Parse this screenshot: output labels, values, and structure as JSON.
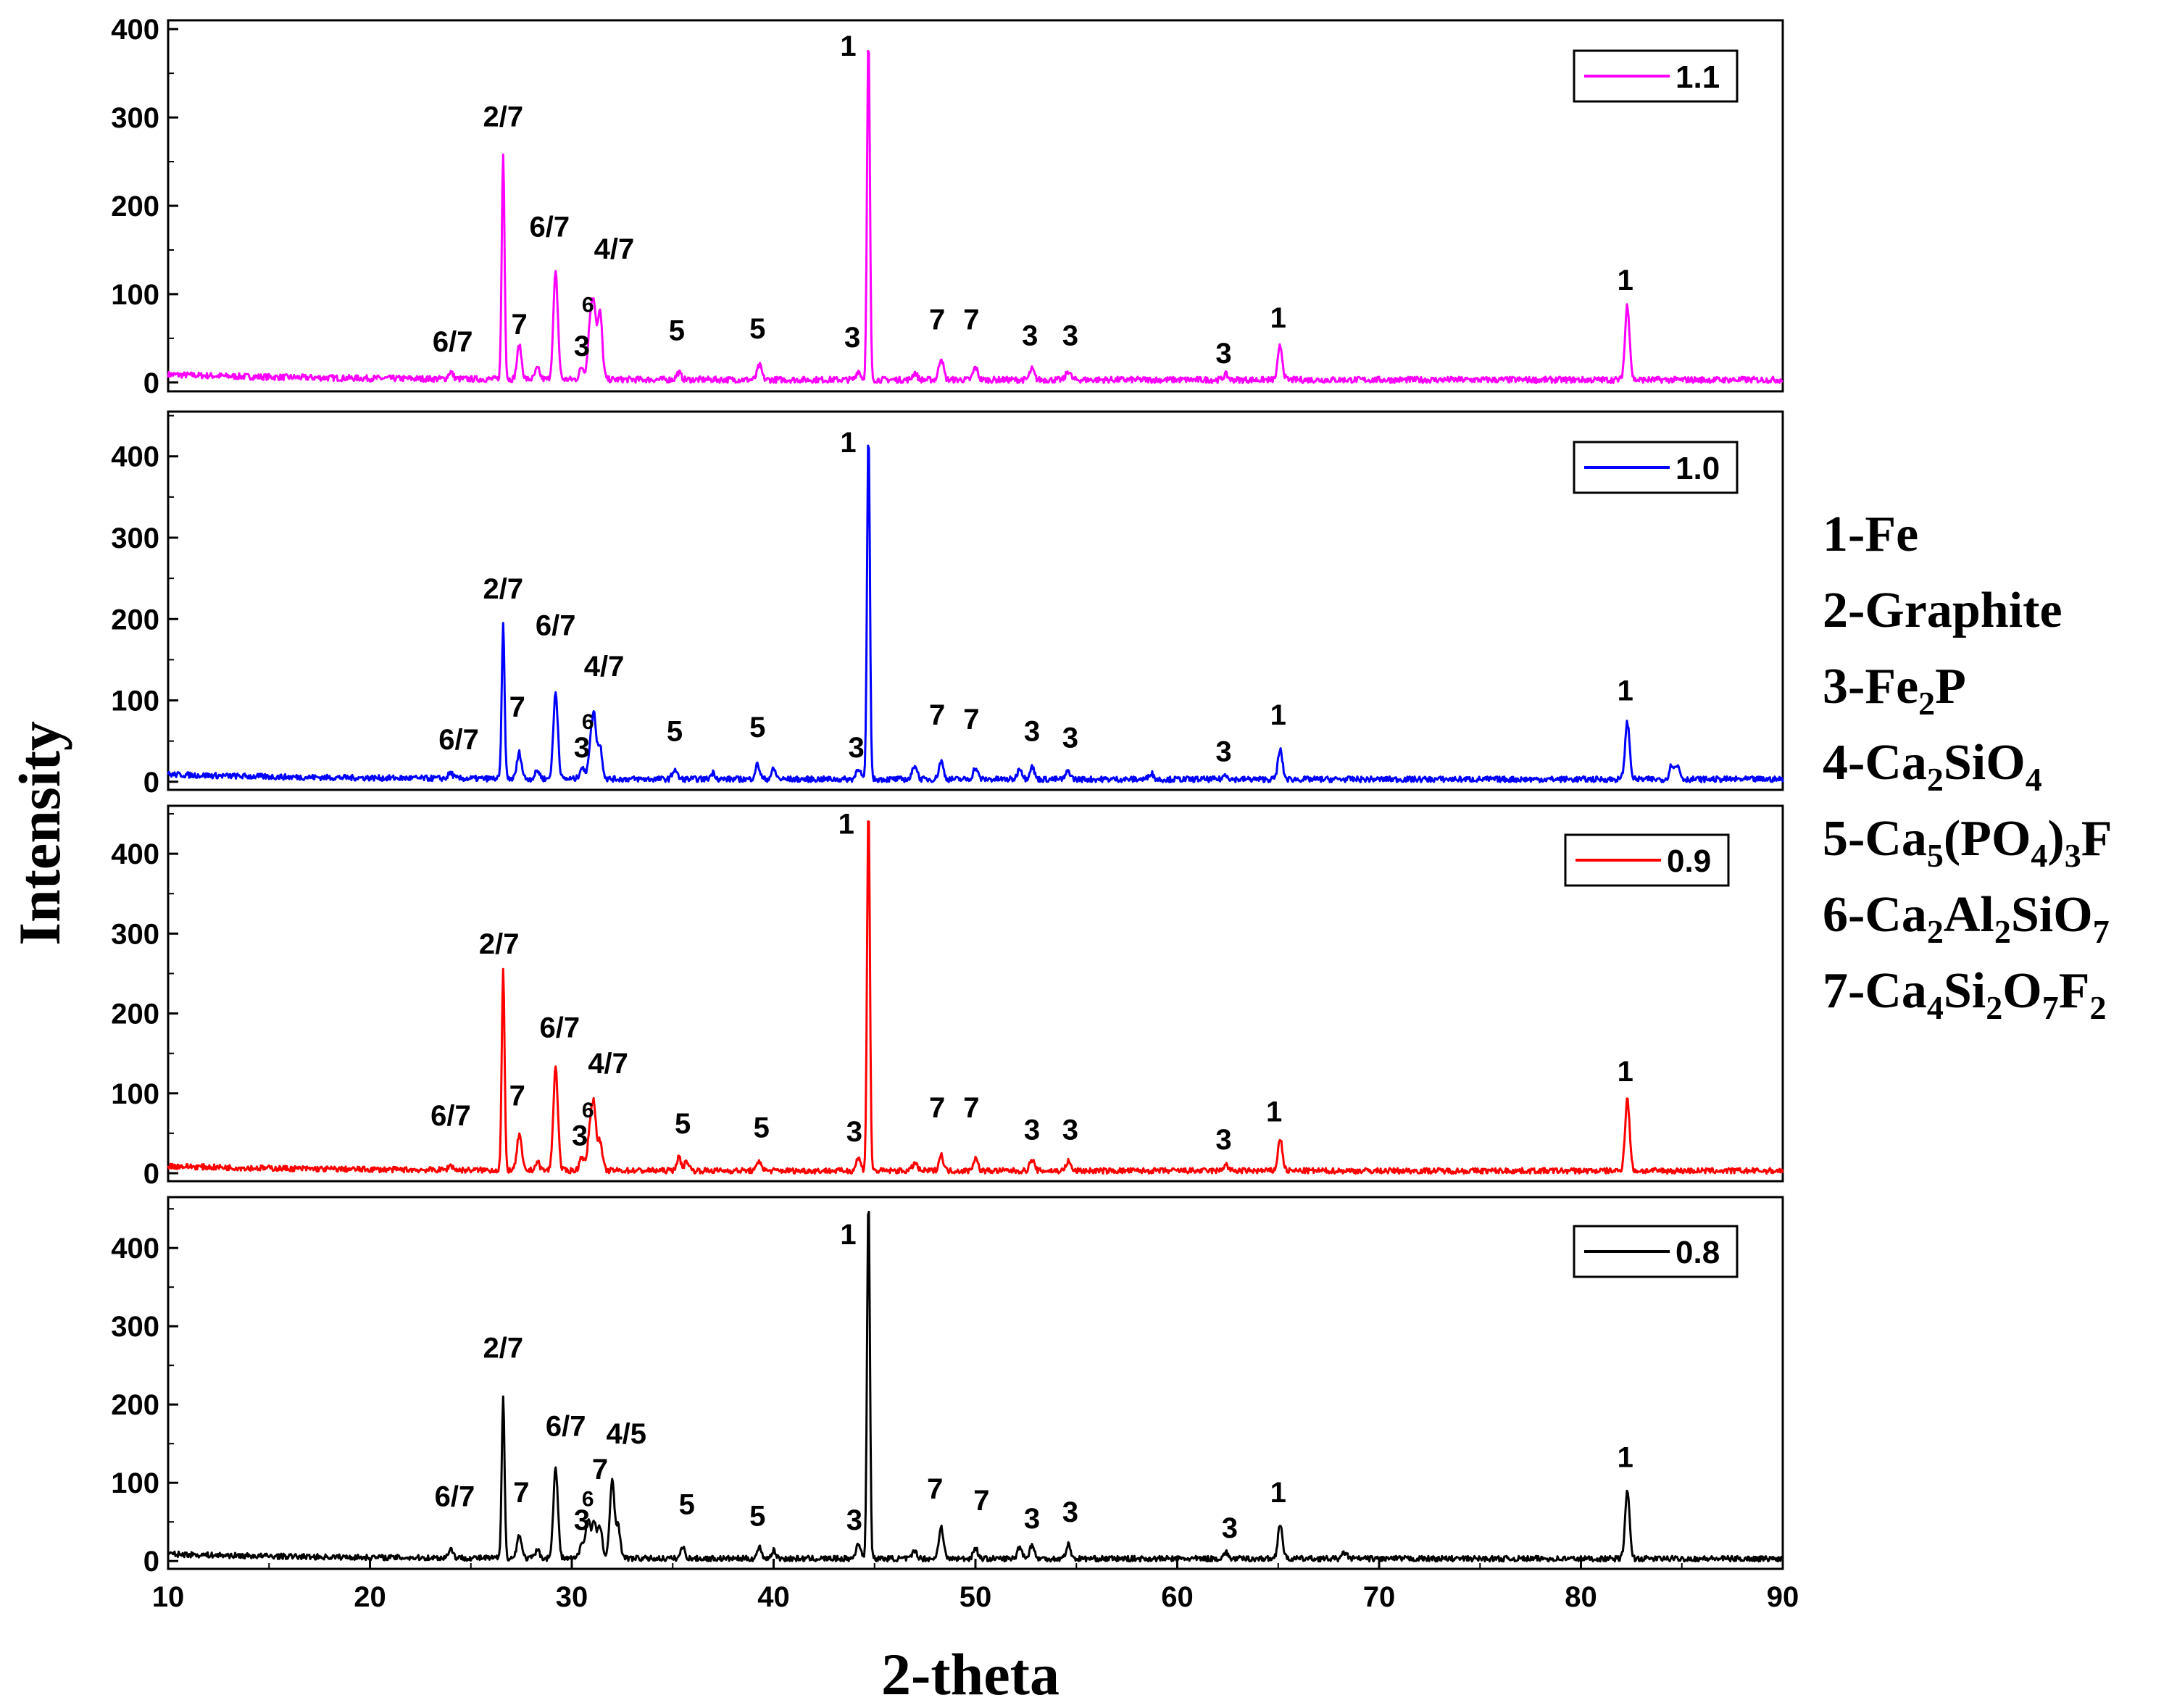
{
  "chart_data": {
    "type": "line",
    "xlabel": "2-theta",
    "ylabel": "Intensity",
    "xlim": [
      10,
      90
    ],
    "x_ticks": [
      "10",
      "20",
      "30",
      "40",
      "50",
      "60",
      "70",
      "80",
      "90"
    ],
    "panels": [
      {
        "name": "1.1",
        "color": "#ff00ff",
        "ylim": [
          -10,
          410
        ],
        "y_ticks": [
          "0",
          "100",
          "200",
          "300",
          "400"
        ],
        "peaks": [
          {
            "x": 24.0,
            "y": 8
          },
          {
            "x": 26.6,
            "y": 255
          },
          {
            "x": 27.4,
            "y": 38
          },
          {
            "x": 28.3,
            "y": 12
          },
          {
            "x": 29.2,
            "y": 120
          },
          {
            "x": 30.5,
            "y": 14
          },
          {
            "x": 30.9,
            "y": 55
          },
          {
            "x": 31.1,
            "y": 78
          },
          {
            "x": 31.4,
            "y": 75
          },
          {
            "x": 35.3,
            "y": 8
          },
          {
            "x": 39.3,
            "y": 16
          },
          {
            "x": 44.2,
            "y": 10
          },
          {
            "x": 44.7,
            "y": 385
          },
          {
            "x": 47.0,
            "y": 8
          },
          {
            "x": 48.3,
            "y": 25
          },
          {
            "x": 50.0,
            "y": 14
          },
          {
            "x": 52.8,
            "y": 12
          },
          {
            "x": 54.6,
            "y": 10
          },
          {
            "x": 62.4,
            "y": 6
          },
          {
            "x": 65.1,
            "y": 38
          },
          {
            "x": 82.3,
            "y": 85
          }
        ],
        "peak_labels": [
          {
            "x": 24.1,
            "y": 35,
            "text": "6/7"
          },
          {
            "x": 27.4,
            "y": 55,
            "text": "7"
          },
          {
            "x": 26.6,
            "y": 290,
            "text": "2/7"
          },
          {
            "x": 28.9,
            "y": 165,
            "text": "6/7"
          },
          {
            "x": 30.5,
            "y": 30,
            "text": "3"
          },
          {
            "x": 30.8,
            "y": 80,
            "text": "6",
            "small": true
          },
          {
            "x": 32.1,
            "y": 140,
            "text": "4/7"
          },
          {
            "x": 35.2,
            "y": 48,
            "text": "5"
          },
          {
            "x": 39.2,
            "y": 50,
            "text": "5"
          },
          {
            "x": 43.9,
            "y": 40,
            "text": "3"
          },
          {
            "x": 43.7,
            "y": 370,
            "text": "1"
          },
          {
            "x": 48.1,
            "y": 60,
            "text": "7"
          },
          {
            "x": 49.8,
            "y": 60,
            "text": "7"
          },
          {
            "x": 52.7,
            "y": 42,
            "text": "3"
          },
          {
            "x": 54.7,
            "y": 42,
            "text": "3"
          },
          {
            "x": 62.3,
            "y": 22,
            "text": "3"
          },
          {
            "x": 65.0,
            "y": 62,
            "text": "1"
          },
          {
            "x": 82.2,
            "y": 105,
            "text": "1"
          }
        ]
      },
      {
        "name": "1.0",
        "color": "#0000ff",
        "ylim": [
          -10,
          455
        ],
        "y_ticks": [
          "0",
          "100",
          "200",
          "300",
          "400"
        ],
        "peaks": [
          {
            "x": 24.0,
            "y": 7
          },
          {
            "x": 26.6,
            "y": 188
          },
          {
            "x": 27.4,
            "y": 32
          },
          {
            "x": 28.3,
            "y": 10
          },
          {
            "x": 29.2,
            "y": 106
          },
          {
            "x": 30.5,
            "y": 14
          },
          {
            "x": 30.9,
            "y": 30
          },
          {
            "x": 31.1,
            "y": 75
          },
          {
            "x": 31.4,
            "y": 40
          },
          {
            "x": 35.1,
            "y": 12
          },
          {
            "x": 37.0,
            "y": 8
          },
          {
            "x": 39.2,
            "y": 18
          },
          {
            "x": 40.0,
            "y": 12
          },
          {
            "x": 44.2,
            "y": 14
          },
          {
            "x": 44.7,
            "y": 425
          },
          {
            "x": 47.0,
            "y": 18
          },
          {
            "x": 48.3,
            "y": 22
          },
          {
            "x": 50.0,
            "y": 14
          },
          {
            "x": 52.2,
            "y": 14
          },
          {
            "x": 52.8,
            "y": 16
          },
          {
            "x": 54.6,
            "y": 10
          },
          {
            "x": 58.7,
            "y": 8
          },
          {
            "x": 62.4,
            "y": 6
          },
          {
            "x": 65.1,
            "y": 36
          },
          {
            "x": 82.3,
            "y": 70
          },
          {
            "x": 84.5,
            "y": 18
          },
          {
            "x": 84.8,
            "y": 16
          }
        ],
        "peak_labels": [
          {
            "x": 24.4,
            "y": 40,
            "text": "6/7"
          },
          {
            "x": 27.3,
            "y": 80,
            "text": "7"
          },
          {
            "x": 26.6,
            "y": 225,
            "text": "2/7"
          },
          {
            "x": 29.2,
            "y": 180,
            "text": "6/7"
          },
          {
            "x": 30.5,
            "y": 30,
            "text": "3"
          },
          {
            "x": 30.8,
            "y": 65,
            "text": "6",
            "small": true
          },
          {
            "x": 31.6,
            "y": 130,
            "text": "4/7"
          },
          {
            "x": 35.1,
            "y": 50,
            "text": "5"
          },
          {
            "x": 39.2,
            "y": 55,
            "text": "5"
          },
          {
            "x": 44.1,
            "y": 30,
            "text": "3"
          },
          {
            "x": 43.7,
            "y": 405,
            "text": "1"
          },
          {
            "x": 48.1,
            "y": 70,
            "text": "7"
          },
          {
            "x": 49.8,
            "y": 65,
            "text": "7"
          },
          {
            "x": 52.8,
            "y": 50,
            "text": "3"
          },
          {
            "x": 54.7,
            "y": 42,
            "text": "3"
          },
          {
            "x": 62.3,
            "y": 25,
            "text": "3"
          },
          {
            "x": 65.0,
            "y": 70,
            "text": "1"
          },
          {
            "x": 82.2,
            "y": 100,
            "text": "1"
          }
        ]
      },
      {
        "name": "0.9",
        "color": "#ff0000",
        "ylim": [
          -10,
          460
        ],
        "y_ticks": [
          "0",
          "100",
          "200",
          "300",
          "400"
        ],
        "peaks": [
          {
            "x": 24.0,
            "y": 6
          },
          {
            "x": 26.6,
            "y": 250
          },
          {
            "x": 27.4,
            "y": 45
          },
          {
            "x": 28.3,
            "y": 10
          },
          {
            "x": 29.2,
            "y": 130
          },
          {
            "x": 30.5,
            "y": 18
          },
          {
            "x": 30.9,
            "y": 48
          },
          {
            "x": 31.1,
            "y": 75
          },
          {
            "x": 31.4,
            "y": 35
          },
          {
            "x": 35.3,
            "y": 16
          },
          {
            "x": 35.7,
            "y": 12
          },
          {
            "x": 39.3,
            "y": 12
          },
          {
            "x": 44.2,
            "y": 16
          },
          {
            "x": 44.7,
            "y": 455
          },
          {
            "x": 47.0,
            "y": 10
          },
          {
            "x": 48.3,
            "y": 20
          },
          {
            "x": 50.0,
            "y": 16
          },
          {
            "x": 52.8,
            "y": 14
          },
          {
            "x": 54.6,
            "y": 12
          },
          {
            "x": 62.4,
            "y": 8
          },
          {
            "x": 65.1,
            "y": 40
          },
          {
            "x": 82.3,
            "y": 90
          }
        ],
        "peak_labels": [
          {
            "x": 24.0,
            "y": 60,
            "text": "6/7"
          },
          {
            "x": 27.3,
            "y": 85,
            "text": "7"
          },
          {
            "x": 26.4,
            "y": 275,
            "text": "2/7"
          },
          {
            "x": 29.4,
            "y": 170,
            "text": "6/7"
          },
          {
            "x": 30.4,
            "y": 35,
            "text": "3"
          },
          {
            "x": 30.8,
            "y": 70,
            "text": "6",
            "small": true
          },
          {
            "x": 31.8,
            "y": 125,
            "text": "4/7"
          },
          {
            "x": 35.5,
            "y": 50,
            "text": "5"
          },
          {
            "x": 39.4,
            "y": 45,
            "text": "5"
          },
          {
            "x": 44.0,
            "y": 40,
            "text": "3"
          },
          {
            "x": 43.6,
            "y": 425,
            "text": "1"
          },
          {
            "x": 48.1,
            "y": 70,
            "text": "7"
          },
          {
            "x": 49.8,
            "y": 70,
            "text": "7"
          },
          {
            "x": 52.8,
            "y": 42,
            "text": "3"
          },
          {
            "x": 54.7,
            "y": 42,
            "text": "3"
          },
          {
            "x": 62.3,
            "y": 30,
            "text": "3"
          },
          {
            "x": 64.8,
            "y": 65,
            "text": "1"
          },
          {
            "x": 82.2,
            "y": 115,
            "text": "1"
          }
        ]
      },
      {
        "name": "0.8",
        "color": "#000000",
        "ylim": [
          -10,
          465
        ],
        "y_ticks": [
          "0",
          "100",
          "200",
          "300",
          "400"
        ],
        "peaks": [
          {
            "x": 24.0,
            "y": 12
          },
          {
            "x": 26.6,
            "y": 205
          },
          {
            "x": 27.4,
            "y": 30
          },
          {
            "x": 28.3,
            "y": 10
          },
          {
            "x": 29.2,
            "y": 115
          },
          {
            "x": 30.5,
            "y": 18
          },
          {
            "x": 30.8,
            "y": 50
          },
          {
            "x": 31.1,
            "y": 45
          },
          {
            "x": 31.4,
            "y": 40
          },
          {
            "x": 32.0,
            "y": 100
          },
          {
            "x": 32.3,
            "y": 40
          },
          {
            "x": 35.5,
            "y": 14
          },
          {
            "x": 39.3,
            "y": 14
          },
          {
            "x": 40.0,
            "y": 10
          },
          {
            "x": 44.2,
            "y": 20
          },
          {
            "x": 44.7,
            "y": 460
          },
          {
            "x": 47.0,
            "y": 10
          },
          {
            "x": 48.3,
            "y": 42
          },
          {
            "x": 50.0,
            "y": 14
          },
          {
            "x": 52.2,
            "y": 16
          },
          {
            "x": 52.8,
            "y": 18
          },
          {
            "x": 54.6,
            "y": 18
          },
          {
            "x": 62.4,
            "y": 8
          },
          {
            "x": 65.1,
            "y": 45
          },
          {
            "x": 68.3,
            "y": 8
          },
          {
            "x": 82.3,
            "y": 85
          }
        ],
        "peak_labels": [
          {
            "x": 24.2,
            "y": 70,
            "text": "6/7"
          },
          {
            "x": 27.5,
            "y": 75,
            "text": "7"
          },
          {
            "x": 26.6,
            "y": 260,
            "text": "2/7"
          },
          {
            "x": 29.7,
            "y": 160,
            "text": "6/7"
          },
          {
            "x": 30.5,
            "y": 40,
            "text": "3"
          },
          {
            "x": 30.8,
            "y": 70,
            "text": "6",
            "small": true
          },
          {
            "x": 31.4,
            "y": 105,
            "text": "7"
          },
          {
            "x": 32.7,
            "y": 150,
            "text": "4/5"
          },
          {
            "x": 35.7,
            "y": 60,
            "text": "5"
          },
          {
            "x": 39.2,
            "y": 45,
            "text": "5"
          },
          {
            "x": 44.0,
            "y": 40,
            "text": "3"
          },
          {
            "x": 43.7,
            "y": 405,
            "text": "1"
          },
          {
            "x": 48.0,
            "y": 80,
            "text": "7"
          },
          {
            "x": 50.3,
            "y": 65,
            "text": "7"
          },
          {
            "x": 52.8,
            "y": 42,
            "text": "3"
          },
          {
            "x": 54.7,
            "y": 50,
            "text": "3"
          },
          {
            "x": 62.6,
            "y": 30,
            "text": "3"
          },
          {
            "x": 65.0,
            "y": 75,
            "text": "1"
          },
          {
            "x": 82.2,
            "y": 120,
            "text": "1"
          }
        ]
      }
    ],
    "phase_legend": [
      {
        "prefix": "1-",
        "parts": [
          {
            "t": "Fe"
          }
        ]
      },
      {
        "prefix": "2-",
        "parts": [
          {
            "t": "Graphite"
          }
        ]
      },
      {
        "prefix": "3-",
        "parts": [
          {
            "t": "Fe"
          },
          {
            "t": "2",
            "sub": true
          },
          {
            "t": "P"
          }
        ]
      },
      {
        "prefix": "4-",
        "parts": [
          {
            "t": "Ca"
          },
          {
            "t": "2",
            "sub": true
          },
          {
            "t": "SiO"
          },
          {
            "t": "4",
            "sub": true
          }
        ]
      },
      {
        "prefix": "5-",
        "parts": [
          {
            "t": "Ca"
          },
          {
            "t": "5",
            "sub": true
          },
          {
            "t": "(PO"
          },
          {
            "t": "4",
            "sub": true
          },
          {
            "t": ")"
          },
          {
            "t": "3",
            "sub": true
          },
          {
            "t": "F"
          }
        ]
      },
      {
        "prefix": "6-",
        "parts": [
          {
            "t": "Ca"
          },
          {
            "t": "2",
            "sub": true
          },
          {
            "t": "Al"
          },
          {
            "t": "2",
            "sub": true
          },
          {
            "t": "SiO"
          },
          {
            "t": "7",
            "sub": true
          }
        ]
      },
      {
        "prefix": "7-",
        "parts": [
          {
            "t": "Ca"
          },
          {
            "t": "4",
            "sub": true
          },
          {
            "t": "Si"
          },
          {
            "t": "2",
            "sub": true
          },
          {
            "t": "O"
          },
          {
            "t": "7",
            "sub": true
          },
          {
            "t": "F"
          },
          {
            "t": "2",
            "sub": true
          }
        ]
      }
    ]
  }
}
